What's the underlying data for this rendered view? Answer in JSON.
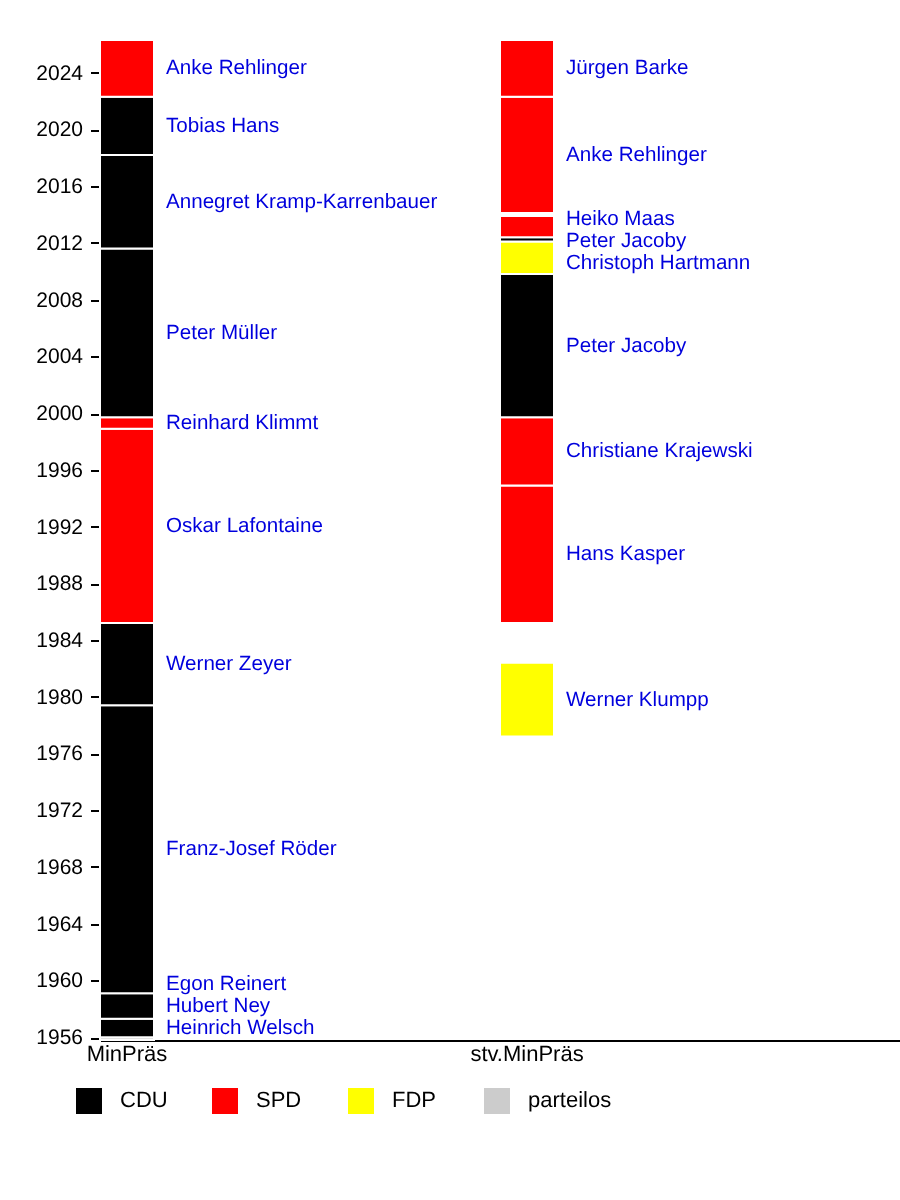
{
  "chart_data": {
    "type": "bar",
    "categories": [
      "MinPräs",
      "stv.MinPräs"
    ],
    "series": [
      {
        "name": "Heinrich Welsch",
        "color": "#cccccc",
        "base": [
          1955.8,
          null
        ],
        "values": [
          0.2,
          null
        ]
      },
      {
        "name": "Hubert Ney",
        "color": "#000000",
        "base": [
          1956.0,
          null
        ],
        "values": [
          1.3,
          null
        ]
      },
      {
        "name": "Egon Reinert",
        "color": "#000000",
        "base": [
          1957.3,
          null
        ],
        "values": [
          1.8,
          null
        ]
      },
      {
        "name": "Franz-Josef Röder",
        "color": "#000000",
        "base": [
          1959.1,
          null
        ],
        "values": [
          20.3,
          null
        ]
      },
      {
        "name": "Werner Zeyer",
        "color": "#000000",
        "base": [
          1979.4,
          null
        ],
        "values": [
          5.8,
          null
        ]
      },
      {
        "name": "Oskar Lafontaine",
        "color": "#ff0000",
        "base": [
          1985.2,
          null
        ],
        "values": [
          13.7,
          null
        ]
      },
      {
        "name": "Reinhard Klimmt",
        "color": "#ff0000",
        "base": [
          1998.9,
          null
        ],
        "values": [
          0.8,
          null
        ]
      },
      {
        "name": "Peter Müller",
        "color": "#000000",
        "base": [
          1999.7,
          null
        ],
        "values": [
          11.9,
          null
        ]
      },
      {
        "name": "Annegret Kramp-Karrenbauer",
        "color": "#000000",
        "base": [
          2011.6,
          null
        ],
        "values": [
          6.6,
          null
        ]
      },
      {
        "name": "Tobias Hans",
        "color": "#000000",
        "base": [
          2018.2,
          null
        ],
        "values": [
          4.1,
          null
        ]
      },
      {
        "name": "Anke Rehlinger",
        "color": "#ff0000",
        "base": [
          2022.3,
          null
        ],
        "values": [
          4.0,
          null
        ]
      },
      {
        "name": "Werner Klumpp",
        "color": "#ffff00",
        "base": [
          null,
          1977.2
        ],
        "values": [
          null,
          5.2
        ]
      },
      {
        "name": "Hans Kasper",
        "color": "#ff0000",
        "base": [
          null,
          1985.2
        ],
        "values": [
          null,
          9.7
        ]
      },
      {
        "name": "Christiane Krajewski",
        "color": "#ff0000",
        "base": [
          null,
          1994.9
        ],
        "values": [
          null,
          4.8
        ]
      },
      {
        "name": "Peter Jacoby",
        "color": "#000000",
        "base": [
          null,
          1999.7
        ],
        "values": [
          null,
          10.1
        ]
      },
      {
        "name": "Christoph Hartmann",
        "color": "#ffff00",
        "base": [
          null,
          2009.8
        ],
        "values": [
          null,
          2.3
        ]
      },
      {
        "name": "Peter Jacoby",
        "color": "#000000",
        "base": [
          null,
          2012.1
        ],
        "values": [
          null,
          0.3
        ]
      },
      {
        "name": "Heiko Maas",
        "color": "#ff0000",
        "base": [
          null,
          2012.4
        ],
        "values": [
          null,
          1.5
        ]
      },
      {
        "name": "Anke Rehlinger",
        "color": "#ff0000",
        "base": [
          null,
          2014.1
        ],
        "values": [
          null,
          8.2
        ]
      },
      {
        "name": "Jürgen Barke",
        "color": "#ff0000",
        "base": [
          null,
          2022.3
        ],
        "values": [
          null,
          4.0
        ]
      },
      {
        "name": "CDU",
        "color": "#000000",
        "values": [
          null,
          null
        ]
      },
      {
        "name": "SPD",
        "color": "#ff0000",
        "values": [
          null,
          null
        ]
      },
      {
        "name": "FDP",
        "color": "#ffff00",
        "values": [
          null,
          null
        ]
      },
      {
        "name": "parteilos",
        "color": "#cccccc",
        "values": [
          null,
          null
        ]
      }
    ],
    "ylim": [
      1955.8,
      2026.3
    ],
    "yticks": [
      1956,
      1960,
      1964,
      1968,
      1972,
      1976,
      1980,
      1984,
      1988,
      1992,
      1996,
      2000,
      2004,
      2008,
      2012,
      2016,
      2020,
      2024
    ],
    "legend": "bottom"
  }
}
